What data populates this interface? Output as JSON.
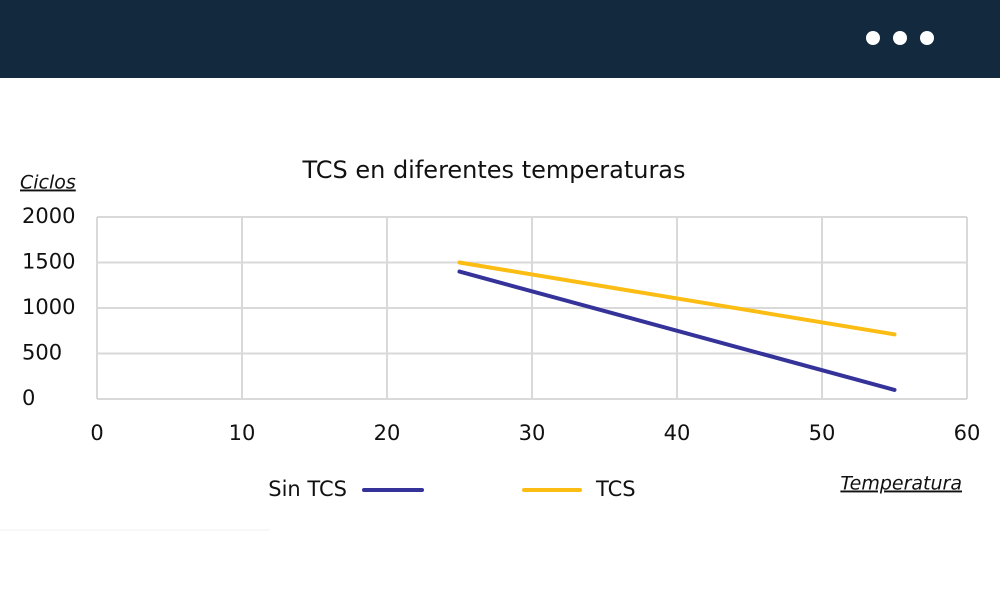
{
  "chart_data": {
    "type": "line",
    "title": "TCS en diferentes temperaturas",
    "y_label": "Ciclos",
    "x_label": "Temperatura",
    "x": [
      25,
      55
    ],
    "series": [
      {
        "name": "Sin TCS",
        "color": "#35339a",
        "values": [
          1400,
          100
        ]
      },
      {
        "name": "TCS",
        "color": "#fbbd13",
        "values": [
          1500,
          710
        ]
      }
    ],
    "xlim": [
      0,
      60
    ],
    "xticks": [
      0,
      10,
      20,
      30,
      40,
      50,
      60
    ],
    "ylim": [
      0,
      2000
    ],
    "yticks": [
      0,
      500,
      1000,
      1500,
      2000
    ],
    "grid": true,
    "legend": "bottom"
  }
}
